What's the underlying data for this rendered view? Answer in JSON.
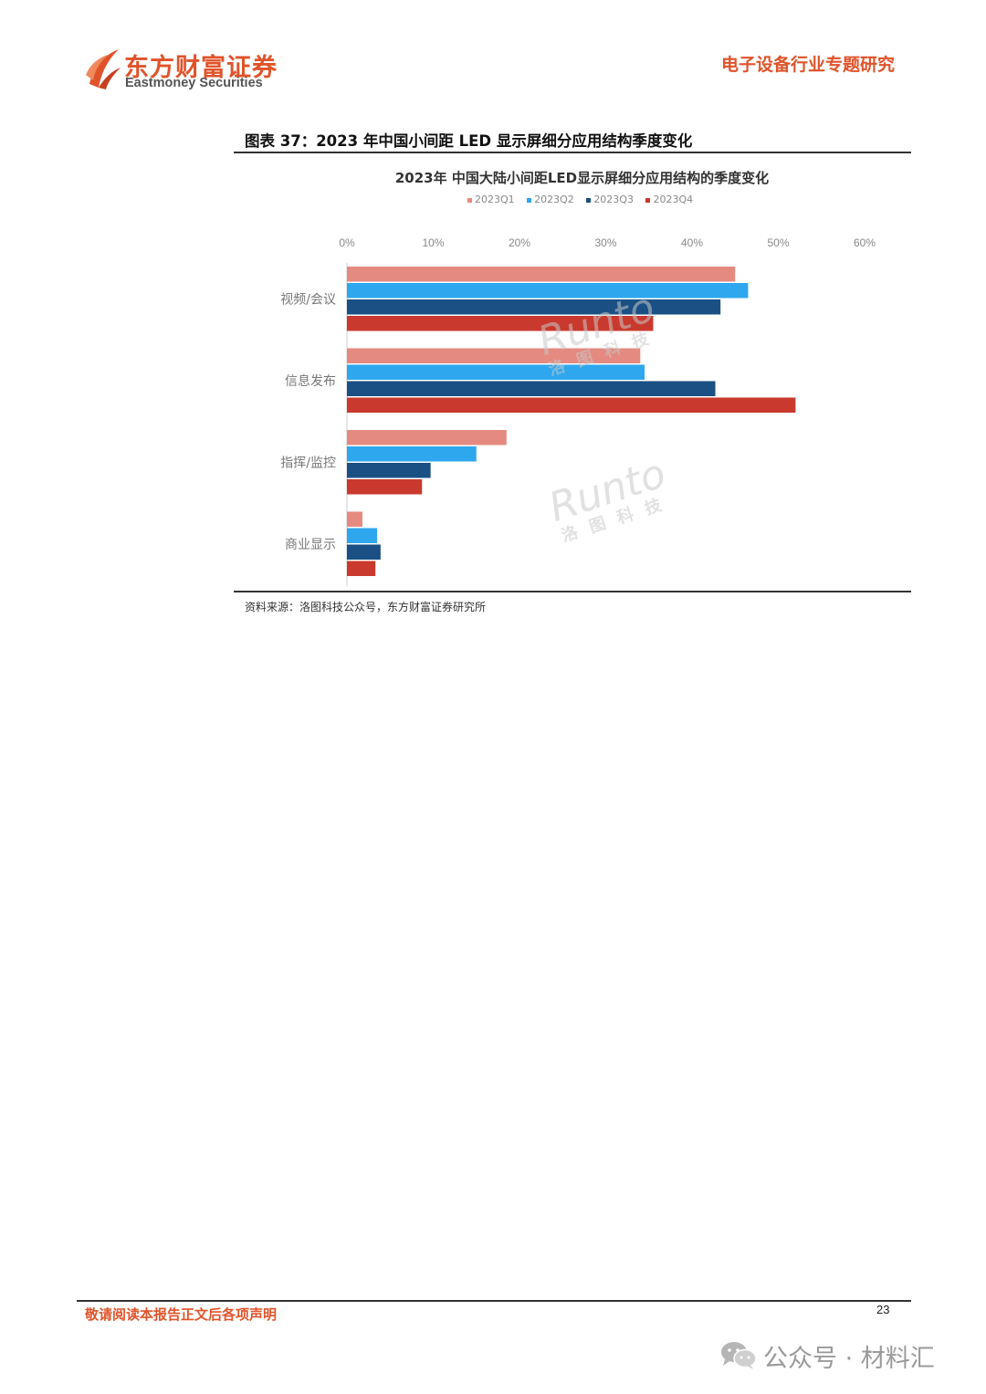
{
  "header": {
    "brand_cn": "东方财富证券",
    "brand_en": "Eastmoney Securities",
    "report_type": "电子设备行业专题研究",
    "accent_color": "#e0532a"
  },
  "figure": {
    "caption": "图表 37：2023 年中国小间距 LED 显示屏细分应用结构季度变化",
    "source": "资料来源：洛图科技公众号，东方财富证券研究所"
  },
  "watermark": {
    "logo_text": "Runto",
    "logo_sub": "洛图科技"
  },
  "chart_data": {
    "type": "bar",
    "orientation": "horizontal",
    "title": "2023年 中国大陆小间距LED显示屏细分应用结构的季度变化",
    "categories": [
      "视频/会议",
      "信息发布",
      "指挥/监控",
      "商业显示"
    ],
    "series": [
      {
        "name": "2023Q1",
        "color": "#e58a80",
        "values": [
          45,
          34,
          18.5,
          1.8
        ]
      },
      {
        "name": "2023Q2",
        "color": "#2ea7ee",
        "values": [
          46.5,
          34.5,
          15,
          3.5
        ]
      },
      {
        "name": "2023Q3",
        "color": "#1a5083",
        "values": [
          43.3,
          42.7,
          9.7,
          3.9
        ]
      },
      {
        "name": "2023Q4",
        "color": "#c9392d",
        "values": [
          35.5,
          52,
          8.7,
          3.3
        ]
      }
    ],
    "xlim": [
      0,
      60
    ],
    "x_ticks": [
      "0%",
      "10%",
      "20%",
      "30%",
      "40%",
      "50%",
      "60%"
    ],
    "x_tick_values": [
      0,
      10,
      20,
      30,
      40,
      50,
      60
    ],
    "x_axis_position": "top",
    "legend_position": "top",
    "grid": false
  },
  "footer": {
    "disclaimer": "敬请阅读本报告正文后各项声明",
    "page_number": "23",
    "wechat_label": "公众号 · 材料汇"
  }
}
